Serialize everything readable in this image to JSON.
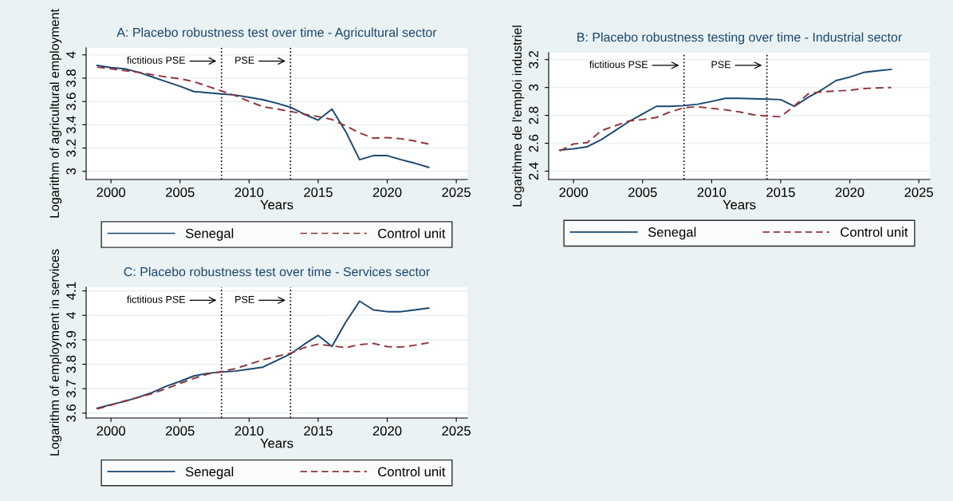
{
  "chart_data": [
    {
      "type": "line",
      "title": "A: Placebo robustness test over time - Agricultural sector",
      "xlabel": "Years",
      "ylabel": "Logarithm of agricultural employment",
      "x": [
        1999,
        2000,
        2001,
        2002,
        2003,
        2004,
        2005,
        2006,
        2007,
        2008,
        2009,
        2010,
        2011,
        2012,
        2013,
        2014,
        2015,
        2016,
        2017,
        2018,
        2019,
        2020,
        2021,
        2022,
        2023
      ],
      "series": [
        {
          "name": "Senegal",
          "color": "#1a476f",
          "line_style": "solid",
          "values": [
            3.91,
            3.89,
            3.88,
            3.85,
            3.81,
            3.77,
            3.73,
            3.685,
            3.675,
            3.665,
            3.655,
            3.635,
            3.615,
            3.585,
            3.55,
            3.49,
            3.44,
            3.535,
            3.34,
            3.1,
            3.135,
            3.135,
            3.1,
            3.07,
            3.035
          ]
        },
        {
          "name": "Control unit",
          "color": "#90353b",
          "line_style": "dashed",
          "values": [
            3.895,
            3.88,
            3.865,
            3.85,
            3.83,
            3.81,
            3.795,
            3.77,
            3.73,
            3.69,
            3.65,
            3.6,
            3.555,
            3.535,
            3.515,
            3.49,
            3.47,
            3.445,
            3.39,
            3.33,
            3.285,
            3.29,
            3.28,
            3.26,
            3.235
          ]
        }
      ],
      "xlim": [
        1998.2,
        2025.8
      ],
      "xticks": [
        2000,
        2005,
        2010,
        2015,
        2020,
        2025
      ],
      "ylim": [
        2.93,
        4.06
      ],
      "yticks": [
        3,
        3.2,
        3.4,
        3.6,
        3.8,
        4
      ],
      "grid": "y",
      "legend": "bottom",
      "marker": "none",
      "ref_lines": [
        {
          "axis": "x",
          "value": 2008,
          "label": "fictitious PSE",
          "line_style": "dotted",
          "color": "#000000"
        },
        {
          "axis": "x",
          "value": 2013,
          "label": "PSE",
          "line_style": "dotted",
          "color": "#000000"
        }
      ]
    },
    {
      "type": "line",
      "title": "B: Placebo robustness testing over time - Industrial sector",
      "xlabel": "Years",
      "ylabel": "Logarithme de l'emploi industriel",
      "x": [
        1999,
        2000,
        2001,
        2002,
        2003,
        2004,
        2005,
        2006,
        2007,
        2008,
        2009,
        2010,
        2011,
        2012,
        2013,
        2014,
        2015,
        2016,
        2017,
        2018,
        2019,
        2020,
        2021,
        2022,
        2023
      ],
      "series": [
        {
          "name": "Senegal",
          "color": "#1a476f",
          "line_style": "solid",
          "values": [
            2.55,
            2.56,
            2.575,
            2.625,
            2.69,
            2.755,
            2.81,
            2.865,
            2.865,
            2.87,
            2.88,
            2.9,
            2.922,
            2.922,
            2.92,
            2.917,
            2.913,
            2.865,
            2.93,
            2.985,
            3.05,
            3.075,
            3.108,
            3.12,
            3.13
          ]
        },
        {
          "name": "Control unit",
          "color": "#90353b",
          "line_style": "dashed",
          "values": [
            2.545,
            2.595,
            2.605,
            2.69,
            2.725,
            2.76,
            2.77,
            2.785,
            2.825,
            2.855,
            2.862,
            2.85,
            2.84,
            2.825,
            2.805,
            2.795,
            2.79,
            2.87,
            2.955,
            2.97,
            2.975,
            2.98,
            2.992,
            2.997,
            3.0
          ]
        }
      ],
      "xlim": [
        1998.2,
        2025.8
      ],
      "xticks": [
        2000,
        2005,
        2010,
        2015,
        2020,
        2025
      ],
      "ylim": [
        2.34,
        3.25
      ],
      "yticks": [
        2.4,
        2.6,
        2.8,
        3,
        3.2
      ],
      "grid": "y",
      "legend": "bottom",
      "marker": "none",
      "ref_lines": [
        {
          "axis": "x",
          "value": 2008,
          "label": "fictitious PSE",
          "line_style": "dotted",
          "color": "#000000"
        },
        {
          "axis": "x",
          "value": 2014,
          "label": "PSE",
          "line_style": "dotted",
          "color": "#000000"
        }
      ]
    },
    {
      "type": "line",
      "title": "C: Placebo robustness test over time - Services sector",
      "xlabel": "Years",
      "ylabel": "Logarithm of employment in services",
      "x": [
        1999,
        2000,
        2001,
        2002,
        2003,
        2004,
        2005,
        2006,
        2007,
        2008,
        2009,
        2010,
        2011,
        2012,
        2013,
        2014,
        2015,
        2016,
        2017,
        2018,
        2019,
        2020,
        2021,
        2022,
        2023
      ],
      "series": [
        {
          "name": "Senegal",
          "color": "#1a476f",
          "line_style": "solid",
          "values": [
            3.62,
            3.635,
            3.648,
            3.665,
            3.685,
            3.71,
            3.73,
            3.752,
            3.763,
            3.768,
            3.772,
            3.78,
            3.788,
            3.815,
            3.842,
            3.882,
            3.918,
            3.873,
            3.972,
            4.058,
            4.022,
            4.015,
            4.015,
            4.022,
            4.03
          ]
        },
        {
          "name": "Control unit",
          "color": "#90353b",
          "line_style": "dashed",
          "values": [
            3.617,
            3.633,
            3.65,
            3.665,
            3.68,
            3.7,
            3.722,
            3.742,
            3.76,
            3.77,
            3.782,
            3.8,
            3.818,
            3.832,
            3.845,
            3.868,
            3.882,
            3.875,
            3.868,
            3.88,
            3.885,
            3.872,
            3.87,
            3.878,
            3.888
          ]
        }
      ],
      "xlim": [
        1998.2,
        2025.8
      ],
      "xticks": [
        2000,
        2005,
        2010,
        2015,
        2020,
        2025
      ],
      "ylim": [
        3.58,
        4.115
      ],
      "yticks": [
        3.6,
        3.7,
        3.8,
        3.9,
        4,
        4.1
      ],
      "grid": "y",
      "legend": "bottom",
      "marker": "none",
      "ref_lines": [
        {
          "axis": "x",
          "value": 2008,
          "label": "fictitious PSE",
          "line_style": "dotted",
          "color": "#000000"
        },
        {
          "axis": "x",
          "value": 2013,
          "label": "PSE",
          "line_style": "dotted",
          "color": "#000000"
        }
      ]
    }
  ]
}
